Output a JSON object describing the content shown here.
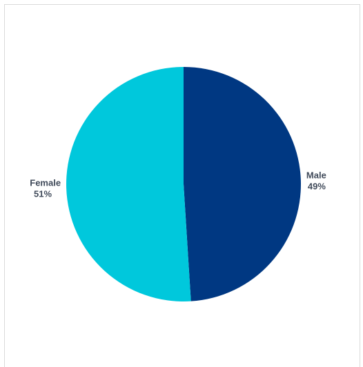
{
  "chart_data": {
    "type": "pie",
    "title": "",
    "slices": [
      {
        "label": "Male",
        "value": 49,
        "display": "49%",
        "color": "#003882"
      },
      {
        "label": "Female",
        "value": 51,
        "display": "51%",
        "color": "#00c8dc"
      }
    ],
    "start_angle_deg": 0,
    "direction": "clockwise",
    "legend": "none",
    "data_labels": "outside"
  }
}
